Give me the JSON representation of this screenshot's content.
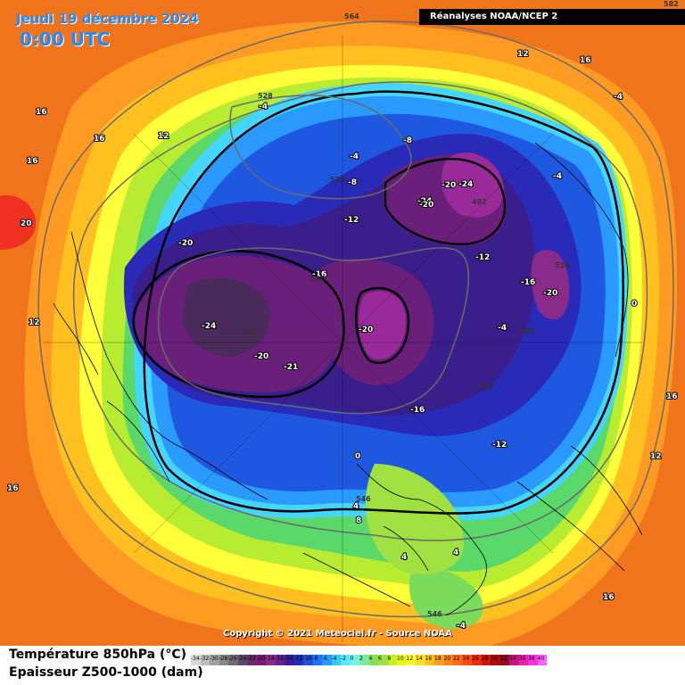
{
  "header": {
    "date": "Jeudi 19 décembre 2024",
    "time": "0:00 UTC",
    "source": "Réanalyses NOAA/NCEP 2"
  },
  "footer": {
    "copyright": "Copyright © 2021 Meteociel.fr - Source NOAA"
  },
  "legend": {
    "line1": "Température 850hPa (°C)",
    "line2": "Epaisseur Z500-1000 (dam)",
    "scale_values": [
      "-34",
      "-32",
      "-30",
      "-28",
      "-26",
      "-24",
      "-22",
      "-20",
      "-18",
      "-16",
      "-14",
      "-12",
      "-10",
      "-8",
      "-6",
      "-4",
      "-2",
      "0",
      "2",
      "4",
      "6",
      "8",
      "10",
      "12",
      "14",
      "16",
      "18",
      "20",
      "22",
      "24",
      "26",
      "28",
      "30",
      "32",
      "34",
      "36",
      "38",
      "40"
    ],
    "colors": [
      "#d8d8d8",
      "#bcbcbc",
      "#a0a0a0",
      "#888888",
      "#706a78",
      "#5a4a66",
      "#6a2a6a",
      "#7a1a7a",
      "#8a2a8a",
      "#6a1f8c",
      "#3a1f9c",
      "#2030b0",
      "#1f50d8",
      "#2070ff",
      "#2a9aff",
      "#36c8ff",
      "#5ae8ff",
      "#7af0e0",
      "#7ae8a0",
      "#8adc5a",
      "#a0e040",
      "#c8f020",
      "#e8f818",
      "#ffff30",
      "#ffe020",
      "#ffc018",
      "#ffa020",
      "#ff8418",
      "#ff6814",
      "#ff4a10",
      "#f0280c",
      "#d0140a",
      "#b00808",
      "#900a20",
      "#c81480",
      "#e820b0",
      "#ff30e0",
      "#ff60ff"
    ]
  },
  "map_labels": {
    "temperature": [
      "-4",
      "-8",
      "-4",
      "-8",
      "-24",
      "-20",
      "-24",
      "-12",
      "-12",
      "-20",
      "-16",
      "-16",
      "-20",
      "-24",
      "-20",
      "-21",
      "-20",
      "-4",
      "-20",
      "-16",
      "-12",
      "-4",
      "-4",
      "0",
      "4",
      "4",
      "4",
      "8",
      "12",
      "12",
      "16",
      "16",
      "16",
      "16",
      "16",
      "16",
      "20",
      "12",
      "0",
      "16",
      "12",
      "-4"
    ],
    "thickness": [
      "564",
      "528",
      "528",
      "492",
      "510",
      "492",
      "510",
      "528",
      "510",
      "546",
      "546",
      "582"
    ]
  }
}
